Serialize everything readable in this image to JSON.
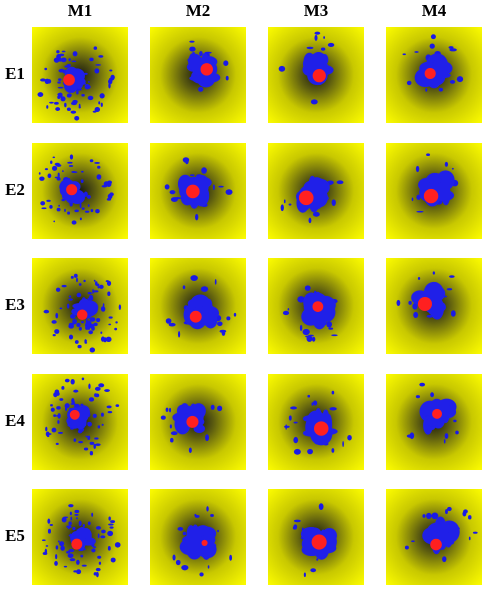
{
  "columns": [
    "M1",
    "M2",
    "M3",
    "M4"
  ],
  "rows": [
    "E1",
    "E2",
    "E3",
    "E4",
    "E5"
  ]
}
